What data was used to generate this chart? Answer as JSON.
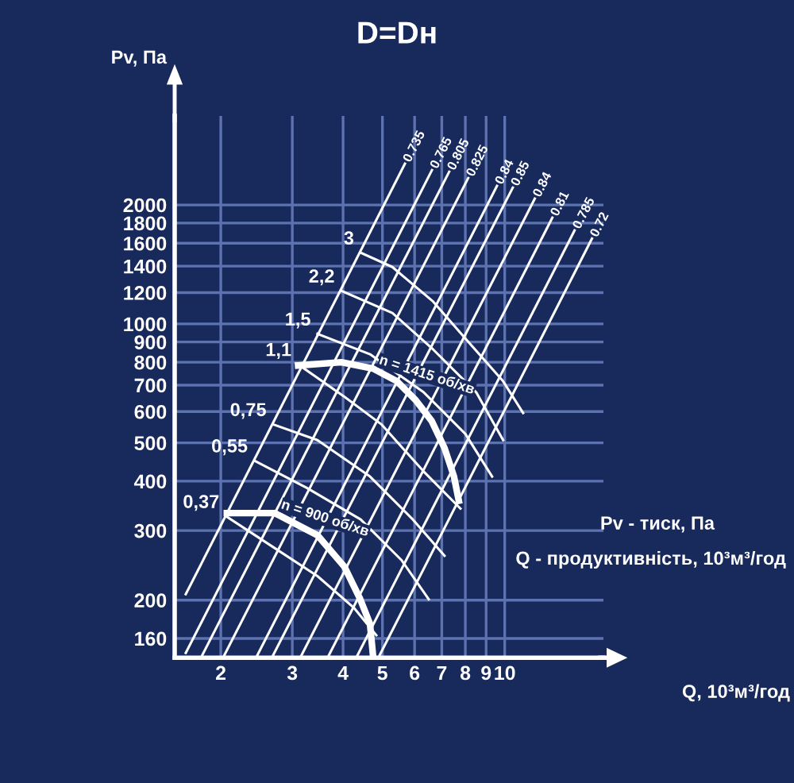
{
  "chart_data": {
    "type": "line",
    "title": "D=Dн",
    "ylabel": "Pv, Па",
    "xlabel": "Q, 10³м³/год",
    "log": "xy",
    "grid": true,
    "marker": "none",
    "line_style": "solid",
    "xlim": [
      1.54,
      17.5
    ],
    "xticks": [
      2,
      3,
      4,
      5,
      6,
      7,
      8,
      9,
      10
    ],
    "ylim": [
      143,
      3360
    ],
    "yticks": [
      160,
      200,
      300,
      400,
      500,
      600,
      700,
      800,
      900,
      1000,
      1200,
      1400,
      1600,
      1800,
      2000
    ],
    "annotations": [
      "Pv - тиск, Па",
      "Q - продуктивність, 10³м³/год",
      {
        "text": "3",
        "x": 4.42,
        "y": 1514
      },
      {
        "text": "2,2",
        "x": 3.96,
        "y": 1213
      },
      {
        "text": "1,5",
        "x": 3.46,
        "y": 944
      },
      {
        "text": "1,1",
        "x": 3.1,
        "y": 790
      },
      {
        "text": "0,75",
        "x": 2.69,
        "y": 557
      },
      {
        "text": "0,55",
        "x": 2.42,
        "y": 451
      },
      {
        "text": "0,37",
        "x": 2.06,
        "y": 326
      },
      {
        "text": "0.735",
        "x": 5.68,
        "y": 2543
      },
      {
        "text": "0.765",
        "x": 6.62,
        "y": 2449
      },
      {
        "text": "0.805",
        "x": 7.3,
        "y": 2427
      },
      {
        "text": "0.825",
        "x": 8.13,
        "y": 2339
      },
      {
        "text": "0.84",
        "x": 9.57,
        "y": 2234
      },
      {
        "text": "0.85",
        "x": 10.47,
        "y": 2213
      },
      {
        "text": "0.84",
        "x": 11.86,
        "y": 2075
      },
      {
        "text": "0.81",
        "x": 13.1,
        "y": 1857
      },
      {
        "text": "0.785",
        "x": 14.86,
        "y": 1724
      },
      {
        "text": "0.72",
        "x": 16.4,
        "y": 1644
      }
    ],
    "series": [
      {
        "name": "n = 1415 об/хв",
        "color": "#ffffff",
        "x": [
          3.1,
          3.96,
          4.74,
          5.43,
          6.04,
          6.61,
          7.11,
          7.5,
          7.71
        ],
        "values": [
          785,
          800,
          771,
          716,
          641,
          568,
          485,
          411,
          357
        ]
      },
      {
        "name": "n = 900 об/хв",
        "color": "#ffffff",
        "x": [
          2.07,
          2.72,
          3.46,
          4.03,
          4.41,
          4.66,
          4.74
        ],
        "values": [
          332,
          332,
          292,
          243,
          201,
          174,
          145
        ]
      },
      {
        "color": "#ffffff",
        "x": [
          4.42,
          5.29,
          6.67,
          8.0,
          9.91,
          11.1
        ],
        "values": [
          1514,
          1393,
          1138,
          918,
          716,
          595
        ]
      },
      {
        "color": "#ffffff",
        "x": [
          3.96,
          5.29,
          6.67,
          8.51,
          9.91
        ],
        "values": [
          1213,
          1066,
          861,
          671,
          508
        ]
      },
      {
        "color": "#ffffff",
        "x": [
          3.46,
          4.66,
          6.32,
          8.0,
          9.31
        ],
        "values": [
          944,
          838,
          671,
          527,
          411
        ]
      },
      {
        "color": "#ffffff",
        "x": [
          3.1,
          4.04,
          4.97,
          6.32,
          7.78
        ],
        "values": [
          790,
          653,
          557,
          423,
          341
        ]
      },
      {
        "color": "#ffffff",
        "x": [
          2.69,
          3.46,
          4.66,
          5.94,
          7.11
        ],
        "values": [
          557,
          508,
          411,
          320,
          259
        ]
      },
      {
        "color": "#ffffff",
        "x": [
          2.42,
          3.25,
          4.42,
          5.58,
          6.5
        ],
        "values": [
          451,
          385,
          320,
          252,
          201
        ]
      },
      {
        "color": "#ffffff",
        "x": [
          2.06,
          2.64,
          3.46,
          4.26,
          4.83
        ],
        "values": [
          326,
          276,
          230,
          191,
          163
        ]
      },
      {
        "color": "#ffffff",
        "x": [
          1.64,
          5.68
        ],
        "values": [
          207,
          2543
        ]
      },
      {
        "color": "#ffffff",
        "x": [
          1.64,
          6.62
        ],
        "values": [
          147,
          2449
        ]
      },
      {
        "color": "#ffffff",
        "x": [
          1.8,
          7.3
        ],
        "values": [
          145,
          2427
        ]
      },
      {
        "color": "#ffffff",
        "x": [
          2.04,
          8.13
        ],
        "values": [
          145,
          2339
        ]
      },
      {
        "color": "#ffffff",
        "x": [
          2.46,
          9.57
        ],
        "values": [
          145,
          2234
        ]
      },
      {
        "color": "#ffffff",
        "x": [
          2.69,
          10.47
        ],
        "values": [
          145,
          2213
        ]
      },
      {
        "color": "#ffffff",
        "x": [
          3.16,
          11.86
        ],
        "values": [
          145,
          2075
        ]
      },
      {
        "color": "#ffffff",
        "x": [
          3.69,
          13.1
        ],
        "values": [
          145,
          1857
        ]
      },
      {
        "color": "#ffffff",
        "x": [
          4.34,
          14.86
        ],
        "values": [
          145,
          1724
        ]
      },
      {
        "color": "#ffffff",
        "x": [
          4.92,
          16.4
        ],
        "values": [
          145,
          1644
        ]
      }
    ]
  }
}
